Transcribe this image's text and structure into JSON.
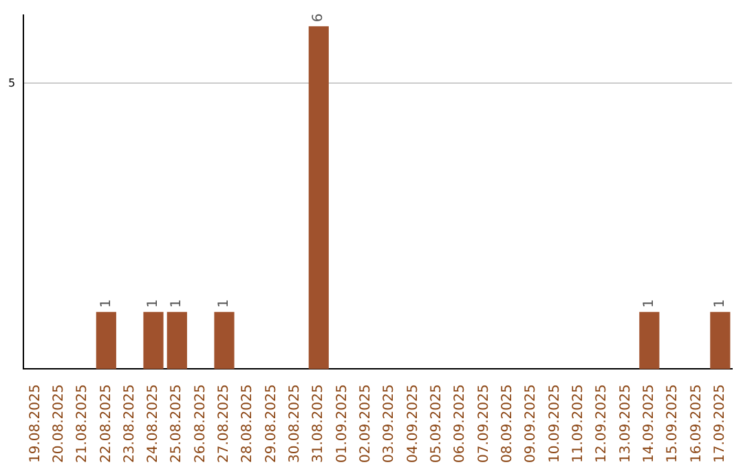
{
  "chart_data": {
    "type": "bar",
    "categories": [
      "19.08.2025",
      "20.08.2025",
      "21.08.2025",
      "22.08.2025",
      "23.08.2025",
      "24.08.2025",
      "25.08.2025",
      "26.08.2025",
      "27.08.2025",
      "28.08.2025",
      "29.08.2025",
      "30.08.2025",
      "31.08.2025",
      "01.09.2025",
      "02.09.2025",
      "03.09.2025",
      "04.09.2025",
      "05.09.2025",
      "06.09.2025",
      "07.09.2025",
      "08.09.2025",
      "09.09.2025",
      "10.09.2025",
      "11.09.2025",
      "12.09.2025",
      "13.09.2025",
      "14.09.2025",
      "15.09.2025",
      "16.09.2025",
      "17.09.2025"
    ],
    "values": [
      0,
      0,
      0,
      1,
      0,
      1,
      1,
      0,
      1,
      0,
      0,
      0,
      6,
      0,
      0,
      0,
      0,
      0,
      0,
      0,
      0,
      0,
      0,
      0,
      0,
      0,
      1,
      0,
      0,
      1
    ],
    "value_labels": [
      null,
      null,
      null,
      "1",
      null,
      "1",
      "1",
      null,
      "1",
      null,
      null,
      null,
      "6",
      null,
      null,
      null,
      null,
      null,
      null,
      null,
      null,
      null,
      null,
      null,
      null,
      null,
      "1",
      null,
      null,
      "1"
    ],
    "color": "#a0522d",
    "ylim": [
      0,
      6.2
    ],
    "yticks": [
      5
    ],
    "grid": "y",
    "legend": false
  }
}
